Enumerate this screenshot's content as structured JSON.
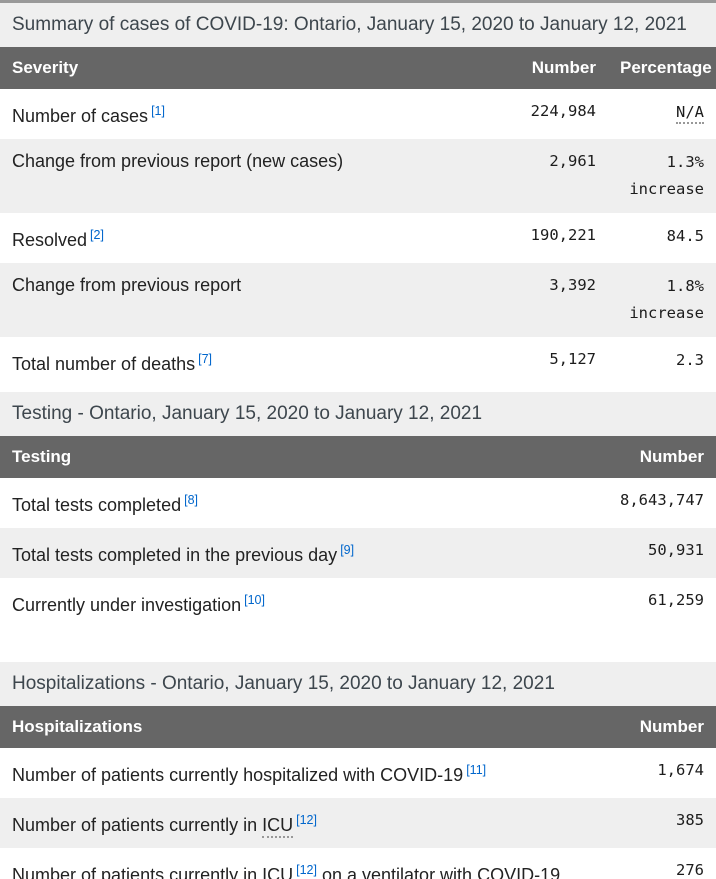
{
  "colors": {
    "header_bg": "#666666",
    "stripe_bg": "#efefef",
    "caption_bg": "#efefef",
    "link_blue": "#0066cc",
    "top_border": "#999999"
  },
  "tables": [
    {
      "name": "summary",
      "caption": "Summary of cases of COVID-19: Ontario, January 15, 2020 to January 12, 2021",
      "columns": [
        "Severity",
        "Number",
        "Percentage"
      ],
      "rows": [
        {
          "label": [
            {
              "t": "Number of cases"
            },
            {
              "sup": "[1]"
            }
          ],
          "number": "224,984",
          "percentage": [
            {
              "abbr": "N/A"
            }
          ]
        },
        {
          "label": [
            {
              "t": "Change from previous report (new cases)"
            }
          ],
          "number": "2,961",
          "percentage": [
            {
              "t": "1.3%"
            },
            {
              "br": true
            },
            {
              "t": "increase"
            }
          ]
        },
        {
          "label": [
            {
              "t": "Resolved"
            },
            {
              "sup": "[2]"
            }
          ],
          "number": "190,221",
          "percentage": [
            {
              "t": "84.5"
            }
          ]
        },
        {
          "label": [
            {
              "t": "Change from previous report"
            }
          ],
          "number": "3,392",
          "percentage": [
            {
              "t": "1.8%"
            },
            {
              "br": true
            },
            {
              "t": "increase"
            }
          ]
        },
        {
          "label": [
            {
              "t": "Total number of deaths"
            },
            {
              "sup": "[7]"
            }
          ],
          "number": "5,127",
          "percentage": [
            {
              "t": "2.3"
            }
          ]
        }
      ]
    },
    {
      "name": "testing",
      "caption": "Testing - Ontario, January 15, 2020 to January 12, 2021",
      "columns": [
        "Testing",
        "Number"
      ],
      "rows": [
        {
          "label": [
            {
              "t": "Total tests completed"
            },
            {
              "sup": "[8]"
            }
          ],
          "number": "8,643,747"
        },
        {
          "label": [
            {
              "t": "Total tests completed in the previous day"
            },
            {
              "sup": "[9]"
            }
          ],
          "number": "50,931"
        },
        {
          "label": [
            {
              "t": "Currently under investigation"
            },
            {
              "sup": "[10]"
            }
          ],
          "number": "61,259"
        }
      ]
    },
    {
      "name": "hospitalizations",
      "caption": "Hospitalizations - Ontario, January 15, 2020 to January 12, 2021",
      "columns": [
        "Hospitalizations",
        "Number"
      ],
      "rows": [
        {
          "label": [
            {
              "t": "Number of patients currently hospitalized with COVID-19"
            },
            {
              "sup": "[11]"
            }
          ],
          "number": "1,674"
        },
        {
          "label": [
            {
              "t": "Number of patients currently in "
            },
            {
              "abbr": "ICU"
            },
            {
              "sup": "[12]"
            }
          ],
          "number": "385"
        },
        {
          "label": [
            {
              "t": "Number of patients currently in "
            },
            {
              "abbr": "ICU"
            },
            {
              "sup": "[12]"
            },
            {
              "t": " on a ventilator with COVID-19"
            }
          ],
          "number": "276"
        }
      ]
    }
  ]
}
